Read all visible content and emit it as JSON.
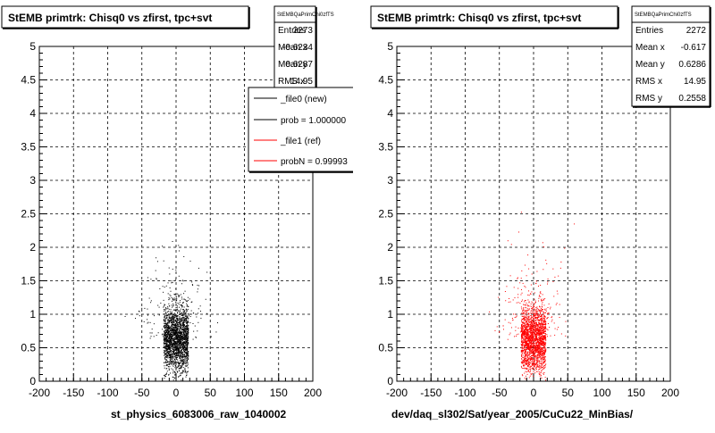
{
  "panels": [
    {
      "title": "StEMB primtrk: Chisq0 vs zfirst, tpc+svt",
      "xlabel": "st_physics_6083006_raw_1040002",
      "color": "#000000",
      "stats": {
        "name": "StEMBQaPrimChi0zfTS",
        "entries_label": "Entries",
        "entries": "2273",
        "meanx_label": "Mean x",
        "meanx": "-0.6234",
        "meany_label": "Mean y",
        "meany": "0.6287",
        "rmsx_label": "RMS x",
        "rmsx": "14.95"
      },
      "legend": [
        {
          "label": "_file0 (new)",
          "color": "#000000"
        },
        {
          "label": "prob = 1.000000",
          "color": "#000000"
        },
        {
          "label": "_file1 (ref)",
          "color": "#ff0000"
        },
        {
          "label": "probN = 0.99993",
          "color": "#ff0000"
        }
      ]
    },
    {
      "title": "StEMB primtrk: Chisq0 vs zfirst, tpc+svt",
      "xlabel": "dev/daq_sl302/Sat/year_2005/CuCu22_MinBias/",
      "color": "#ff0000",
      "stats": {
        "name": "StEMBQaPrimChi0zfTS",
        "entries_label": "Entries",
        "entries": "2272",
        "meanx_label": "Mean x",
        "meanx": "-0.617",
        "meany_label": "Mean y",
        "meany": "0.6286",
        "rmsx_label": "RMS x",
        "rmsx": "14.95",
        "rmsy_label": "RMS y",
        "rmsy": "0.2558"
      }
    }
  ],
  "chart_data": [
    {
      "type": "scatter",
      "title": "StEMB primtrk: Chisq0 vs zfirst, tpc+svt",
      "xlabel": "st_physics_6083006_raw_1040002",
      "ylabel": "",
      "xlim": [
        -200,
        200
      ],
      "ylim": [
        0,
        5
      ],
      "xticks": [
        "-200",
        "-150",
        "-100",
        "-50",
        "0",
        "50",
        "100",
        "150",
        "200"
      ],
      "yticks": [
        "0",
        "0.5",
        "1",
        "1.5",
        "2",
        "2.5",
        "3",
        "3.5",
        "4",
        "4.5",
        "5"
      ],
      "grid": true,
      "series": [
        {
          "name": "_file0 (new)",
          "color": "#000000",
          "entries": 2273,
          "mean_x": -0.6234,
          "mean_y": 0.6287,
          "rms_x": 14.95,
          "rms_y": 0.256
        }
      ]
    },
    {
      "type": "scatter",
      "title": "StEMB primtrk: Chisq0 vs zfirst, tpc+svt",
      "xlabel": "dev/daq_sl302/Sat/year_2005/CuCu22_MinBias/",
      "ylabel": "",
      "xlim": [
        -200,
        200
      ],
      "ylim": [
        0,
        5
      ],
      "xticks": [
        "-200",
        "-150",
        "-100",
        "-50",
        "0",
        "50",
        "100",
        "150",
        "200"
      ],
      "yticks": [
        "0",
        "0.5",
        "1",
        "1.5",
        "2",
        "2.5",
        "3",
        "3.5",
        "4",
        "4.5",
        "5"
      ],
      "grid": true,
      "series": [
        {
          "name": "_file1 (ref)",
          "color": "#ff0000",
          "entries": 2272,
          "mean_x": -0.617,
          "mean_y": 0.6286,
          "rms_x": 14.95,
          "rms_y": 0.2558
        }
      ]
    }
  ]
}
